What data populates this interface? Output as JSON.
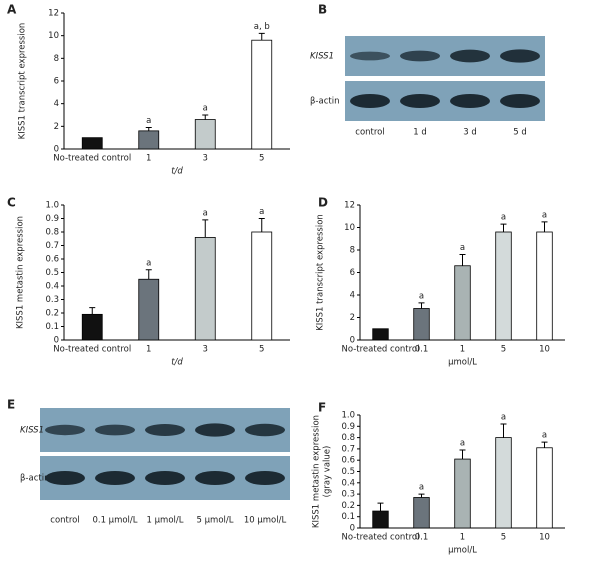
{
  "chart_data": [
    {
      "type": "bar",
      "panel": "A",
      "ylabel": "KISS1 transcript expression",
      "xlabel": "t/d",
      "categories": [
        "No-treated control",
        "1",
        "3",
        "5"
      ],
      "values": [
        1,
        1.6,
        2.6,
        9.6
      ],
      "errors": [
        null,
        0.3,
        0.4,
        0.6
      ],
      "annotations": [
        null,
        "a",
        "a",
        "a, b"
      ],
      "colors": [
        "#111111",
        "#6b747c",
        "#c3cbcb",
        "#ffffff"
      ],
      "ylim": [
        0,
        12
      ],
      "yticks": [
        0,
        2,
        4,
        6,
        8,
        10,
        12
      ]
    },
    {
      "type": "bar",
      "panel": "C",
      "ylabel": "KISS1 metastin expression",
      "xlabel": "t/d",
      "categories": [
        "No-treated control",
        "1",
        "3",
        "5"
      ],
      "values": [
        0.19,
        0.45,
        0.76,
        0.8
      ],
      "errors": [
        0.05,
        0.07,
        0.13,
        0.1
      ],
      "annotations": [
        null,
        "a",
        "a",
        "a"
      ],
      "colors": [
        "#111111",
        "#6b747c",
        "#c3cbcb",
        "#ffffff"
      ],
      "ylim": [
        0,
        1
      ],
      "yticks": [
        0,
        0.1,
        0.2,
        0.3,
        0.4,
        0.5,
        0.6,
        0.7,
        0.8,
        0.9,
        {
          "value": 1,
          "label": "1.0"
        }
      ]
    },
    {
      "type": "bar",
      "panel": "D",
      "ylabel": "KISS1 transcript expression",
      "xlabel": "μmol/L",
      "categories": [
        "No-treated control",
        "0.1",
        "1",
        "5",
        "10"
      ],
      "values": [
        1,
        2.8,
        6.6,
        9.6,
        9.6
      ],
      "errors": [
        null,
        0.5,
        1.0,
        0.7,
        0.9
      ],
      "annotations": [
        null,
        "a",
        "a",
        "a",
        "a"
      ],
      "colors": [
        "#111111",
        "#6b747c",
        "#a9b3b3",
        "#d3dada",
        "#ffffff"
      ],
      "ylim": [
        0,
        12
      ],
      "yticks": [
        0,
        2,
        4,
        6,
        8,
        10,
        12
      ]
    },
    {
      "type": "bar",
      "panel": "F",
      "ylabel": [
        "KISS1 metastin expression",
        "(gray value)"
      ],
      "xlabel": "μmol/L",
      "categories": [
        "No-treated control",
        "0.1",
        "1",
        "5",
        "10"
      ],
      "values": [
        0.15,
        0.27,
        0.61,
        0.8,
        0.71
      ],
      "errors": [
        0.07,
        0.03,
        0.08,
        0.12,
        0.05
      ],
      "annotations": [
        null,
        "a",
        "a",
        "a",
        "a"
      ],
      "colors": [
        "#111111",
        "#6b747c",
        "#a9b3b3",
        "#d3dada",
        "#ffffff"
      ],
      "ylim": [
        0,
        1
      ],
      "yticks": [
        0,
        0.1,
        0.2,
        0.3,
        0.4,
        0.5,
        0.6,
        0.7,
        0.8,
        0.9,
        {
          "value": 1,
          "label": "1.0"
        }
      ]
    }
  ],
  "blots": [
    {
      "panel": "B",
      "rows": [
        "KISS1",
        "β-actin"
      ],
      "lanes": [
        "control",
        "1 d",
        "3 d",
        "5 d"
      ]
    },
    {
      "panel": "E",
      "rows": [
        "KISS1",
        "β-actin"
      ],
      "lanes": [
        "control",
        "0.1 μmol/L",
        "1 μmol/L",
        "5 μmol/L",
        "10 μmol/L"
      ]
    }
  ]
}
